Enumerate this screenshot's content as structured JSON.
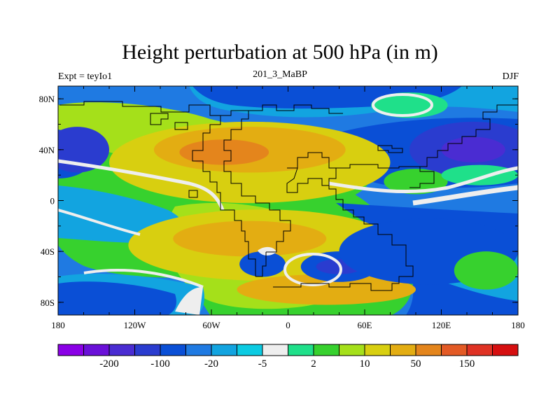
{
  "title": "Height perturbation at 500 hPa (in m)",
  "left_string": "Expt = teyIo1",
  "center_string": "201_3_MaBP",
  "right_string": "DJF",
  "map": {
    "lon_range": [
      -180,
      180
    ],
    "lat_range": [
      -90,
      90
    ],
    "x_ticks": [
      {
        "value": -180,
        "label": "180"
      },
      {
        "value": -120,
        "label": "120W"
      },
      {
        "value": -60,
        "label": "60W"
      },
      {
        "value": 0,
        "label": "0"
      },
      {
        "value": 60,
        "label": "60E"
      },
      {
        "value": 120,
        "label": "120E"
      },
      {
        "value": 180,
        "label": "180"
      }
    ],
    "y_ticks": [
      {
        "value": 80,
        "label": "80N"
      },
      {
        "value": 40,
        "label": "40N"
      },
      {
        "value": 0,
        "label": "0"
      },
      {
        "value": -40,
        "label": "40S"
      },
      {
        "value": -80,
        "label": "80S"
      }
    ]
  },
  "colorbar": {
    "colors": [
      "#8a00e6",
      "#6a10d8",
      "#4a2cd2",
      "#2a3ccf",
      "#0a4fd6",
      "#1f7ae2",
      "#12a4e0",
      "#0ccbe2",
      "#eeeeee",
      "#1fe08a",
      "#37d12e",
      "#a5e01a",
      "#d8cf10",
      "#e3ad12",
      "#e4851c",
      "#e35a25",
      "#df3224",
      "#d60f10"
    ],
    "labels": [
      {
        "after_box": 1,
        "text": "-200"
      },
      {
        "after_box": 3,
        "text": "-100"
      },
      {
        "after_box": 5,
        "text": "-20"
      },
      {
        "after_box": 7,
        "text": "-5"
      },
      {
        "after_box": 9,
        "text": "2"
      },
      {
        "after_box": 11,
        "text": "10"
      },
      {
        "after_box": 13,
        "text": "50"
      },
      {
        "after_box": 15,
        "text": "150"
      }
    ]
  },
  "field_blobs": [
    {
      "lon": -30,
      "lat": 30,
      "rx": 110,
      "ry": 32,
      "color": "#d8cf10"
    },
    {
      "lon": -30,
      "lat": 40,
      "rx": 75,
      "ry": 18,
      "color": "#e3ad12"
    },
    {
      "lon": -50,
      "lat": 38,
      "rx": 35,
      "ry": 10,
      "color": "#e4851c"
    },
    {
      "lon": -20,
      "lat": -35,
      "rx": 105,
      "ry": 28,
      "color": "#d8cf10"
    },
    {
      "lon": -30,
      "lat": -30,
      "rx": 60,
      "ry": 14,
      "color": "#e3ad12"
    },
    {
      "lon": 30,
      "lat": -70,
      "rx": 70,
      "ry": 12,
      "color": "#e3ad12"
    },
    {
      "lon": 145,
      "lat": 40,
      "rx": 50,
      "ry": 22,
      "color": "#2a3ccf"
    },
    {
      "lon": 145,
      "lat": 40,
      "rx": 25,
      "ry": 10,
      "color": "#4a2cd2"
    },
    {
      "lon": -165,
      "lat": 40,
      "rx": 25,
      "ry": 18,
      "color": "#2a3ccf"
    },
    {
      "lon": 40,
      "lat": -52,
      "rx": 30,
      "ry": 12,
      "color": "#0a4fd6"
    },
    {
      "lon": 40,
      "lat": -52,
      "rx": 18,
      "ry": 6,
      "color": "#2a3ccf"
    },
    {
      "lon": -20,
      "lat": -50,
      "rx": 18,
      "ry": 10,
      "color": "#0a4fd6"
    },
    {
      "lon": 110,
      "lat": -40,
      "rx": 70,
      "ry": 26,
      "color": "#0a4fd6"
    },
    {
      "lon": 100,
      "lat": 15,
      "rx": 25,
      "ry": 10,
      "color": "#37d12e"
    },
    {
      "lon": 150,
      "lat": 20,
      "rx": 30,
      "ry": 8,
      "color": "#1fe08a"
    },
    {
      "lon": 95,
      "lat": 75,
      "rx": 30,
      "ry": 10,
      "color": "#1fe08a"
    },
    {
      "lon": 155,
      "lat": -55,
      "rx": 25,
      "ry": 15,
      "color": "#37d12e"
    }
  ]
}
